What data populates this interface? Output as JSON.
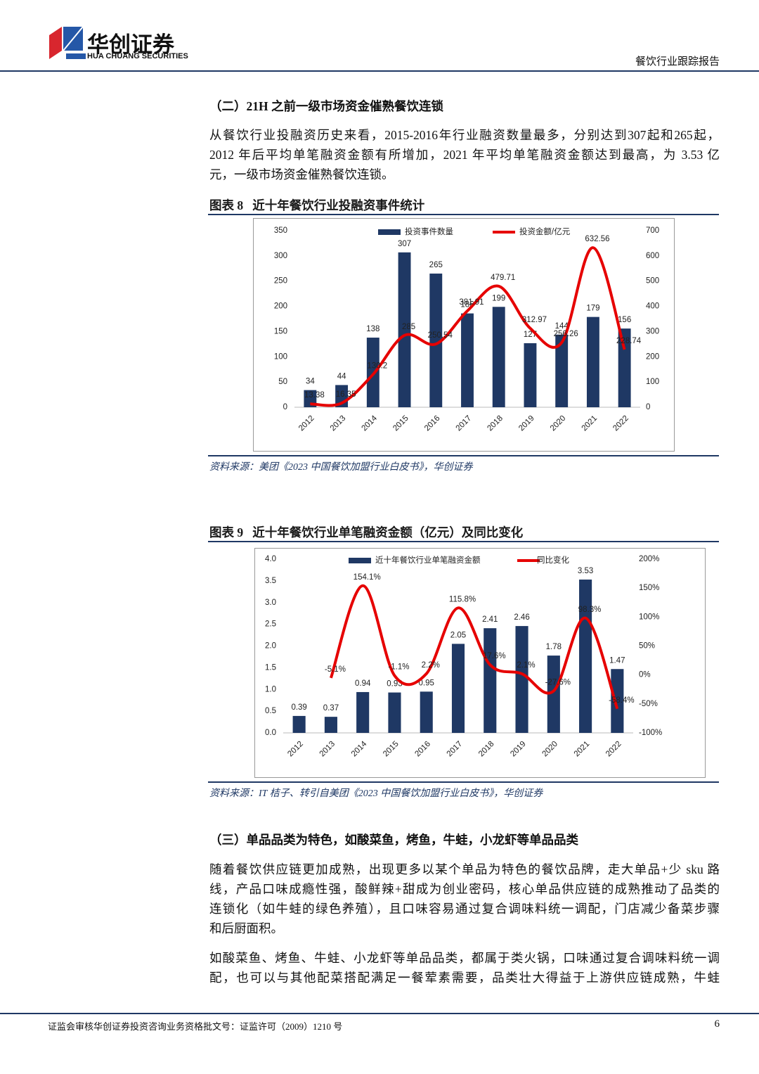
{
  "header": {
    "logo_cn": "华创证券",
    "logo_en": "HUA CHUANG SECURITIES",
    "report": "餐饮行业跟踪报告"
  },
  "section1": {
    "heading": "（二）21H 之前一级市场资金催熟餐饮连锁",
    "paragraph": [
      "从餐饮行业投融资历史来看，2015-2016年行业融资数量最多，分别达到307起和265起，",
      "2012 年后平均单笔融资金额有所增加，2021 年平均单笔融资金额达到最高，为 3.53 亿",
      "元，一级市场资金催熟餐饮连锁。"
    ]
  },
  "figure8": {
    "label": "图表 8",
    "title": "近十年餐饮行业投融资事件统计",
    "source": "资料来源：美团《2023 中国餐饮加盟行业白皮书》，华创证券"
  },
  "figure9": {
    "label": "图表 9",
    "title": "近十年餐饮行业单笔融资金额（亿元）及同比变化",
    "source": "资料来源：IT 桔子、转引自美团《2023 中国餐饮加盟行业白皮书》，华创证券"
  },
  "chart_data": [
    {
      "type": "combo",
      "categories": [
        "2012",
        "2013",
        "2014",
        "2015",
        "2016",
        "2017",
        "2018",
        "2019",
        "2020",
        "2021",
        "2022"
      ],
      "series": [
        {
          "name": "投资事件数量",
          "type": "bar",
          "color": "#1f3864",
          "values": [
            34,
            44,
            138,
            307,
            265,
            186,
            199,
            127,
            144,
            179,
            156
          ]
        },
        {
          "name": "投资金额/亿元",
          "type": "line",
          "axis": "y2",
          "color": "#e60000",
          "values": [
            13.38,
            16.35,
            130.2,
            285,
            250.54,
            381.91,
            479.71,
            312.97,
            256.26,
            632.56,
            228.74
          ]
        }
      ],
      "ylim": [
        0,
        350
      ],
      "yticks": [
        0,
        50,
        100,
        150,
        200,
        250,
        300,
        350
      ],
      "y2lim": [
        0,
        700
      ],
      "y2ticks": [
        0,
        100,
        200,
        300,
        400,
        500,
        600,
        700
      ],
      "grid": false,
      "legend": "top"
    },
    {
      "type": "combo",
      "categories": [
        "2012",
        "2013",
        "2014",
        "2015",
        "2016",
        "2017",
        "2018",
        "2019",
        "2020",
        "2021",
        "2022"
      ],
      "series": [
        {
          "name": "近十年餐饮行业单笔融资金额",
          "type": "bar",
          "color": "#1f3864",
          "values": [
            0.39,
            0.37,
            0.94,
            0.93,
            0.95,
            2.05,
            2.41,
            2.46,
            1.78,
            3.53,
            1.47
          ]
        },
        {
          "name": "同比变化",
          "type": "line",
          "axis": "y2",
          "color": "#e60000",
          "values": [
            null,
            -5.1,
            154.1,
            -1.1,
            2.2,
            115.8,
            17.6,
            2.1,
            -27.6,
            98.3,
            -58.4
          ],
          "value_labels": [
            null,
            "-5.1%",
            "154.1%",
            "-1.1%",
            "2.2%",
            "115.8%",
            "17.6%",
            "2.1%",
            "-27.6%",
            "98.3%",
            "-58.4%"
          ]
        }
      ],
      "ylim": [
        0,
        4
      ],
      "yticks": [
        {
          "value": 0,
          "label": "0.0"
        },
        0.5,
        {
          "value": 1,
          "label": "1.0"
        },
        1.5,
        {
          "value": 2,
          "label": "2.0"
        },
        2.5,
        {
          "value": 3,
          "label": "3.0"
        },
        3.5,
        {
          "value": 4,
          "label": "4.0"
        }
      ],
      "y2lim": [
        -100,
        200
      ],
      "y2ticks": [
        {
          "value": -100,
          "label": "-100%"
        },
        {
          "value": -50,
          "label": "-50%"
        },
        {
          "value": 0,
          "label": "0%"
        },
        {
          "value": 50,
          "label": "50%"
        },
        {
          "value": 100,
          "label": "100%"
        },
        {
          "value": 150,
          "label": "150%"
        },
        {
          "value": 200,
          "label": "200%"
        }
      ],
      "grid": false,
      "legend": "top"
    }
  ],
  "section2": {
    "heading": "（三）单品品类为特色，如酸菜鱼，烤鱼，牛蛙，小龙虾等单品品类",
    "paragraph1": [
      "随着餐饮供应链更加成熟，出现更多以某个单品为特色的餐饮品牌，走大单品+少 sku 路",
      "线，产品口味成瘾性强，酸鲜辣+甜成为创业密码，核心单品供应链的成熟推动了品类的",
      "连锁化（如牛蛙的绿色养殖），且口味容易通过复合调味料统一调配，门店减少备菜步骤",
      "和后厨面积。"
    ],
    "paragraph2": [
      "如酸菜鱼、烤鱼、牛蛙、小龙虾等单品品类，都属于类火锅，口味通过复合调味料统一调",
      "配，也可以与其他配菜搭配满足一餐荤素需要，品类壮大得益于上游供应链成熟，牛蛙"
    ]
  },
  "footer": {
    "license": "证监会审核华创证券投资咨询业务资格批文号：证监许可（2009）1210 号",
    "page": "6"
  }
}
